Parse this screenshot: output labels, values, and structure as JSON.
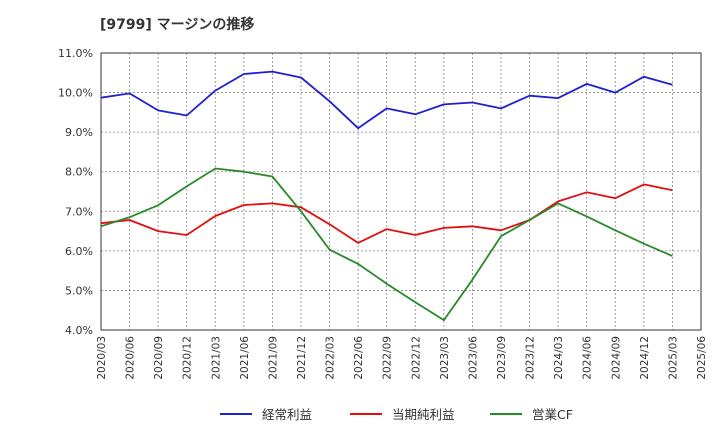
{
  "chart_data": {
    "type": "line",
    "title": "[9799]  マージンの推移",
    "xlabel": "",
    "ylabel": "",
    "ylim": [
      4.0,
      11.0
    ],
    "yticks": [
      "4.0%",
      "5.0%",
      "6.0%",
      "7.0%",
      "8.0%",
      "9.0%",
      "10.0%",
      "11.0%"
    ],
    "categories": [
      "2020/03",
      "2020/06",
      "2020/09",
      "2020/12",
      "2021/03",
      "2021/06",
      "2021/09",
      "2021/12",
      "2022/03",
      "2022/06",
      "2022/09",
      "2022/12",
      "2023/03",
      "2023/06",
      "2023/09",
      "2023/12",
      "2024/03",
      "2024/06",
      "2024/09",
      "2024/12",
      "2025/03",
      "2025/06"
    ],
    "grid": true,
    "legend_position": "bottom",
    "series": [
      {
        "name": "経常利益",
        "color": "#1f1fcf",
        "values": [
          9.87,
          9.98,
          9.55,
          9.42,
          10.05,
          10.47,
          10.53,
          10.38,
          9.78,
          9.1,
          9.6,
          9.45,
          9.7,
          9.75,
          9.6,
          9.92,
          9.86,
          10.22,
          10.0,
          10.4,
          10.2,
          null
        ]
      },
      {
        "name": "当期純利益",
        "color": "#e01010",
        "values": [
          6.7,
          6.78,
          6.5,
          6.4,
          6.88,
          7.16,
          7.2,
          7.1,
          6.67,
          6.2,
          6.55,
          6.4,
          6.58,
          6.62,
          6.52,
          6.78,
          7.25,
          7.48,
          7.33,
          7.68,
          7.53,
          null
        ]
      },
      {
        "name": "営業CF",
        "color": "#2a8a2a",
        "values": [
          6.62,
          6.85,
          7.15,
          7.63,
          8.08,
          8.0,
          7.88,
          7.0,
          6.03,
          5.67,
          5.17,
          4.7,
          4.25,
          5.27,
          6.37,
          6.78,
          7.2,
          6.87,
          6.52,
          6.18,
          5.87,
          null
        ]
      }
    ]
  }
}
